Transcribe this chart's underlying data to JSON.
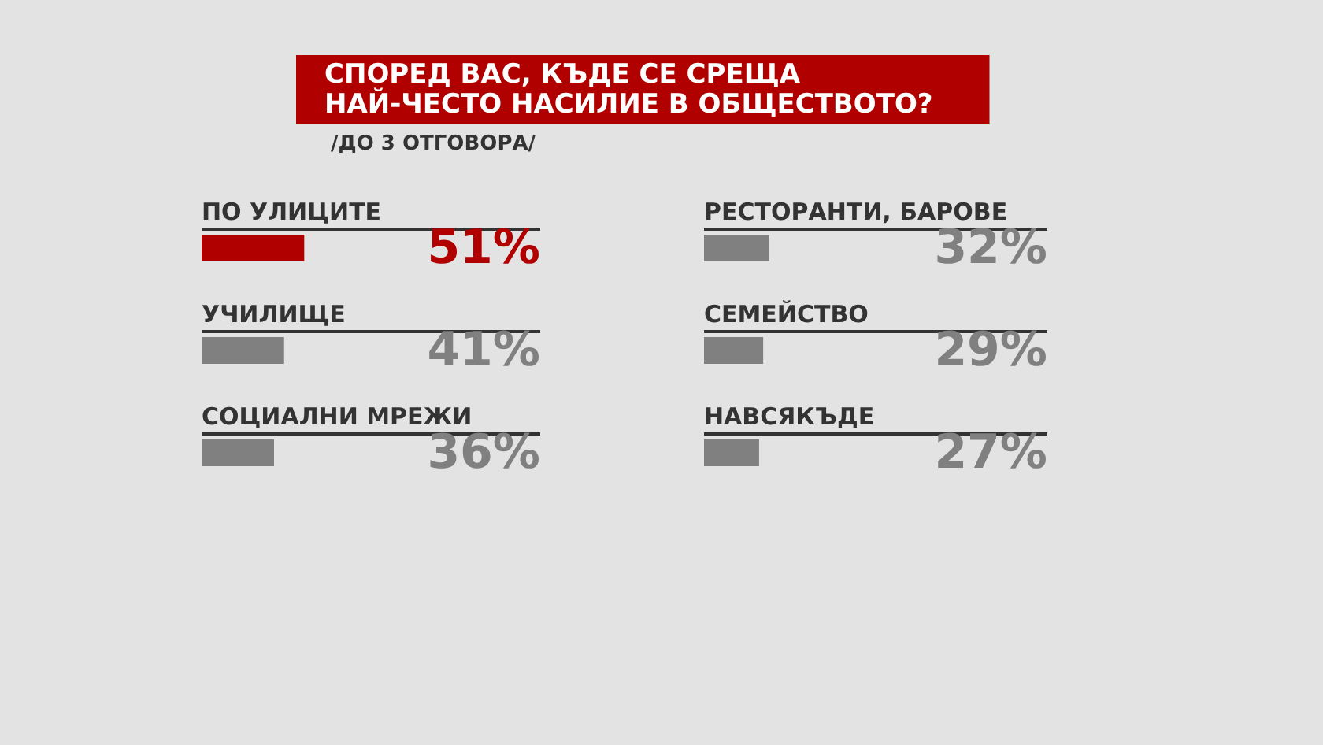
{
  "chart_data": [
    {
      "type": "bar",
      "orientation": "horizontal",
      "title": "СПОРЕД ВАС, КЪДЕ СЕ СРЕЩА\nНАЙ-ЧЕСТО НАСИЛИЕ В ОБЩЕСТВОТО?",
      "subtitle": "/ДО 3 ОТГОВОРА/",
      "categories": [
        "ПО УЛИЦИТЕ",
        "УЧИЛИЩЕ",
        "СОЦИАЛНИ МРЕЖИ"
      ],
      "values": [
        51,
        41,
        36
      ],
      "value_labels": [
        "51%",
        "41%",
        "36%"
      ],
      "colors": [
        "#b00000",
        "#808080",
        "#808080"
      ]
    },
    {
      "type": "bar",
      "orientation": "horizontal",
      "categories": [
        "РЕСТОРАНТИ, БАРОВЕ",
        "СЕМЕЙСТВО",
        "НАВСЯКЪДЕ"
      ],
      "values": [
        32,
        29,
        27
      ],
      "value_labels": [
        "32%",
        "29%",
        "27%"
      ],
      "colors": [
        "#808080",
        "#808080",
        "#808080"
      ]
    }
  ]
}
